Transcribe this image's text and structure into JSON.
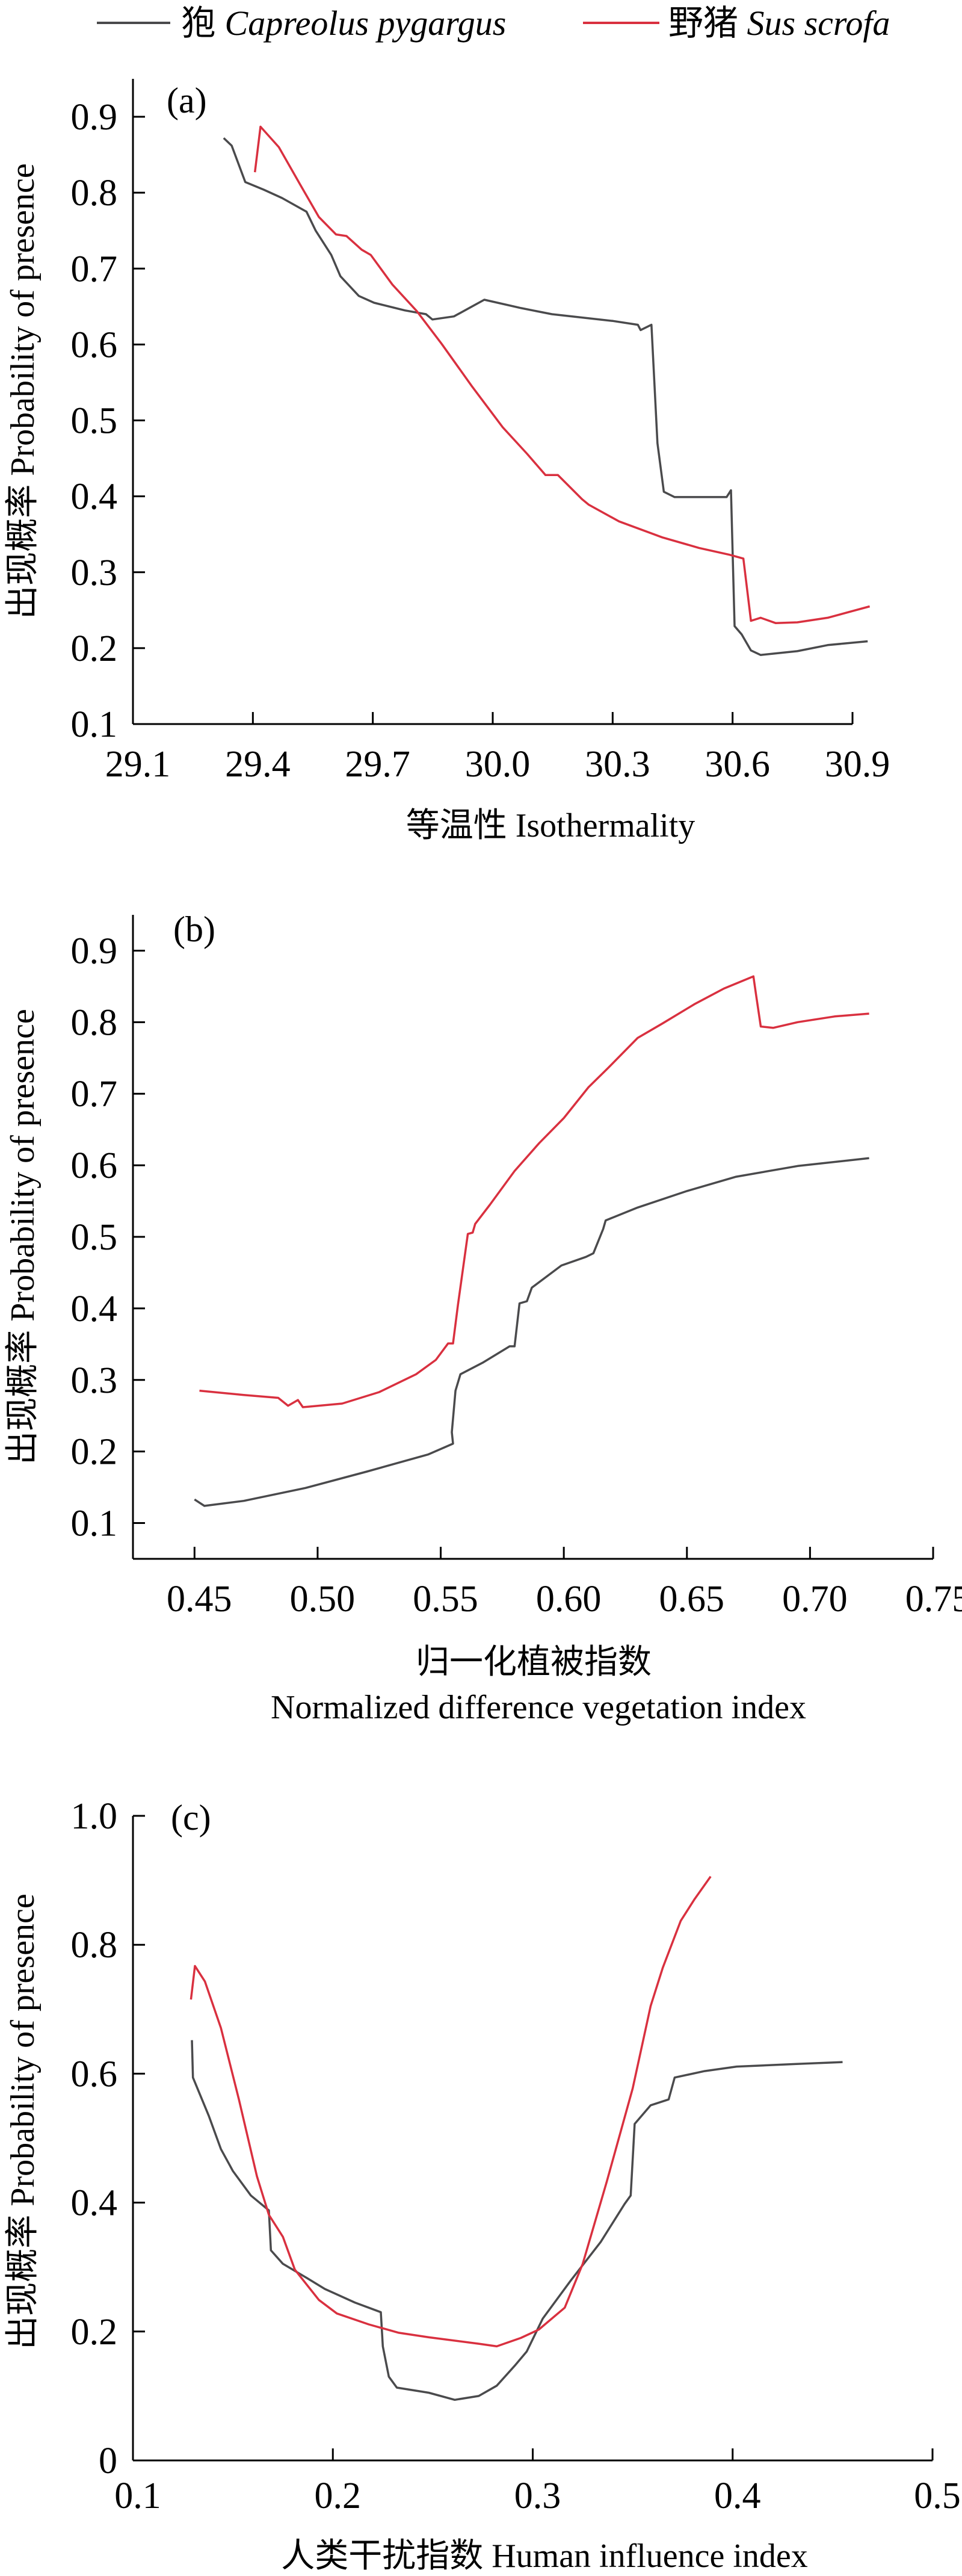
{
  "legend": {
    "position": "top",
    "entries": [
      {
        "cn": "狍",
        "latin": "Capreolus pygargus",
        "color": "#4a4a4c"
      },
      {
        "cn": "野猪",
        "latin": "Sus scrofa",
        "color": "#d9303f"
      }
    ]
  },
  "chart_data": [
    {
      "type": "line",
      "panel_label": "(a)",
      "xlabel": "等温性 Isothermality",
      "ylabel": "出现概率 Probability of presence",
      "xlim": [
        29.1,
        30.9
      ],
      "ylim": [
        0.1,
        0.95
      ],
      "xticks": [
        "29.1",
        "29.4",
        "29.7",
        "30.0",
        "30.3",
        "30.6",
        "30.9"
      ],
      "xtick_values": [
        29.1,
        29.4,
        29.7,
        30.0,
        30.3,
        30.6,
        30.9
      ],
      "yticks": [
        "0.1",
        "0.2",
        "0.3",
        "0.4",
        "0.5",
        "0.6",
        "0.7",
        "0.8",
        "0.9"
      ],
      "ytick_values": [
        0.1,
        0.2,
        0.3,
        0.4,
        0.5,
        0.6,
        0.7,
        0.8,
        0.9
      ],
      "grid": false,
      "series": [
        {
          "name": "Capreolus pygargus",
          "color": "#4a4a4c",
          "x": [
            29.327,
            29.347,
            29.381,
            29.427,
            29.473,
            29.534,
            29.557,
            29.596,
            29.619,
            29.665,
            29.703,
            29.78,
            29.833,
            29.849,
            29.903,
            29.979,
            30.071,
            30.148,
            30.301,
            30.363,
            30.37,
            30.397,
            30.412,
            30.428,
            30.455,
            30.585,
            30.596,
            30.605,
            30.623,
            30.646,
            30.67,
            30.762,
            30.838,
            30.938
          ],
          "y": [
            0.872,
            0.862,
            0.814,
            0.804,
            0.793,
            0.775,
            0.75,
            0.718,
            0.69,
            0.664,
            0.655,
            0.645,
            0.64,
            0.633,
            0.637,
            0.659,
            0.648,
            0.64,
            0.631,
            0.626,
            0.619,
            0.626,
            0.47,
            0.406,
            0.399,
            0.399,
            0.408,
            0.229,
            0.218,
            0.197,
            0.191,
            0.196,
            0.204,
            0.209
          ]
        },
        {
          "name": "Sus scrofa",
          "color": "#d9303f",
          "x": [
            29.405,
            29.419,
            29.465,
            29.518,
            29.565,
            29.608,
            29.634,
            29.672,
            29.695,
            29.749,
            29.81,
            29.872,
            29.948,
            30.025,
            30.086,
            30.132,
            30.163,
            30.224,
            30.24,
            30.316,
            30.424,
            30.516,
            30.593,
            30.627,
            30.646,
            30.67,
            30.708,
            30.762,
            30.838,
            30.943
          ],
          "y": [
            0.827,
            0.887,
            0.86,
            0.811,
            0.768,
            0.745,
            0.743,
            0.725,
            0.718,
            0.679,
            0.644,
            0.601,
            0.545,
            0.491,
            0.456,
            0.428,
            0.428,
            0.396,
            0.389,
            0.367,
            0.346,
            0.332,
            0.323,
            0.318,
            0.236,
            0.24,
            0.233,
            0.234,
            0.24,
            0.255
          ]
        }
      ]
    },
    {
      "type": "line",
      "panel_label": "(b)",
      "xlabel": "归一化植被指数",
      "xlabel_en": "Normalized difference vegetation index",
      "ylabel": "出现概率 Probability of presence",
      "xlim": [
        0.425,
        0.75
      ],
      "ylim": [
        0.05,
        0.95
      ],
      "xticks": [
        "0.45",
        "0.50",
        "0.55",
        "0.60",
        "0.65",
        "0.70",
        "0.75"
      ],
      "xtick_values": [
        0.45,
        0.5,
        0.55,
        0.6,
        0.65,
        0.7,
        0.75
      ],
      "yticks": [
        "0.1",
        "0.2",
        "0.3",
        "0.4",
        "0.5",
        "0.6",
        "0.7",
        "0.8",
        "0.9"
      ],
      "ytick_values": [
        0.1,
        0.2,
        0.3,
        0.4,
        0.5,
        0.6,
        0.7,
        0.8,
        0.9
      ],
      "grid": false,
      "series": [
        {
          "name": "Capreolus pygargus",
          "color": "#4a4a4c",
          "x": [
            0.45,
            0.454,
            0.47,
            0.495,
            0.52,
            0.545,
            0.555,
            0.5545,
            0.556,
            0.558,
            0.567,
            0.578,
            0.58,
            0.582,
            0.585,
            0.587,
            0.599,
            0.609,
            0.612,
            0.616,
            0.617,
            0.63,
            0.65,
            0.67,
            0.695,
            0.724
          ],
          "y": [
            0.133,
            0.124,
            0.131,
            0.149,
            0.172,
            0.196,
            0.211,
            0.227,
            0.285,
            0.308,
            0.324,
            0.347,
            0.347,
            0.407,
            0.41,
            0.429,
            0.46,
            0.472,
            0.477,
            0.511,
            0.523,
            0.541,
            0.564,
            0.584,
            0.599,
            0.61
          ]
        },
        {
          "name": "Sus scrofa",
          "color": "#d9303f",
          "x": [
            0.452,
            0.47,
            0.484,
            0.488,
            0.492,
            0.494,
            0.51,
            0.525,
            0.54,
            0.548,
            0.553,
            0.555,
            0.557,
            0.561,
            0.563,
            0.564,
            0.57,
            0.58,
            0.59,
            0.6,
            0.61,
            0.618,
            0.63,
            0.64,
            0.653,
            0.665,
            0.677,
            0.678,
            0.68,
            0.685,
            0.695,
            0.71,
            0.724
          ],
          "y": [
            0.285,
            0.279,
            0.275,
            0.264,
            0.272,
            0.262,
            0.267,
            0.283,
            0.308,
            0.328,
            0.351,
            0.351,
            0.405,
            0.504,
            0.506,
            0.518,
            0.545,
            0.592,
            0.631,
            0.666,
            0.709,
            0.736,
            0.778,
            0.798,
            0.825,
            0.847,
            0.864,
            0.84,
            0.794,
            0.792,
            0.8,
            0.808,
            0.812
          ]
        }
      ]
    },
    {
      "type": "line",
      "panel_label": "(c)",
      "xlabel": "人类干扰指数 Human influence index",
      "ylabel": "出现概率 Probability of presence",
      "xlim": [
        0.1,
        0.5
      ],
      "ylim": [
        0,
        1.0
      ],
      "xticks": [
        "0.1",
        "0.2",
        "0.3",
        "0.4",
        "0.5"
      ],
      "xtick_values": [
        0.1,
        0.2,
        0.3,
        0.4,
        0.5
      ],
      "yticks": [
        "0",
        "0.2",
        "0.4",
        "0.6",
        "0.8",
        "1.0"
      ],
      "ytick_values": [
        0,
        0.2,
        0.4,
        0.6,
        0.8,
        1.0
      ],
      "grid": false,
      "series": [
        {
          "name": "Capreolus pygargus",
          "color": "#4a4a4c",
          "x": [
            0.1295,
            0.13,
            0.138,
            0.144,
            0.15,
            0.159,
            0.168,
            0.169,
            0.175,
            0.187,
            0.196,
            0.211,
            0.224,
            0.225,
            0.228,
            0.232,
            0.248,
            0.261,
            0.273,
            0.282,
            0.291,
            0.297,
            0.305,
            0.319,
            0.334,
            0.346,
            0.349,
            0.351,
            0.359,
            0.368,
            0.371,
            0.386,
            0.402,
            0.432,
            0.455
          ],
          "y": [
            0.652,
            0.594,
            0.534,
            0.483,
            0.449,
            0.411,
            0.388,
            0.326,
            0.305,
            0.283,
            0.266,
            0.245,
            0.23,
            0.177,
            0.13,
            0.113,
            0.105,
            0.094,
            0.1,
            0.116,
            0.147,
            0.169,
            0.22,
            0.279,
            0.339,
            0.398,
            0.411,
            0.522,
            0.551,
            0.56,
            0.594,
            0.604,
            0.611,
            0.615,
            0.618
          ]
        },
        {
          "name": "Sus scrofa",
          "color": "#d9303f",
          "x": [
            0.129,
            0.131,
            0.136,
            0.144,
            0.153,
            0.162,
            0.168,
            0.175,
            0.181,
            0.193,
            0.202,
            0.218,
            0.233,
            0.248,
            0.273,
            0.282,
            0.294,
            0.303,
            0.316,
            0.325,
            0.337,
            0.35,
            0.359,
            0.365,
            0.374,
            0.381,
            0.389
          ],
          "y": [
            0.715,
            0.767,
            0.743,
            0.671,
            0.56,
            0.441,
            0.381,
            0.347,
            0.296,
            0.249,
            0.228,
            0.211,
            0.198,
            0.191,
            0.181,
            0.177,
            0.19,
            0.203,
            0.237,
            0.305,
            0.432,
            0.577,
            0.705,
            0.764,
            0.837,
            0.871,
            0.906
          ]
        }
      ]
    }
  ]
}
